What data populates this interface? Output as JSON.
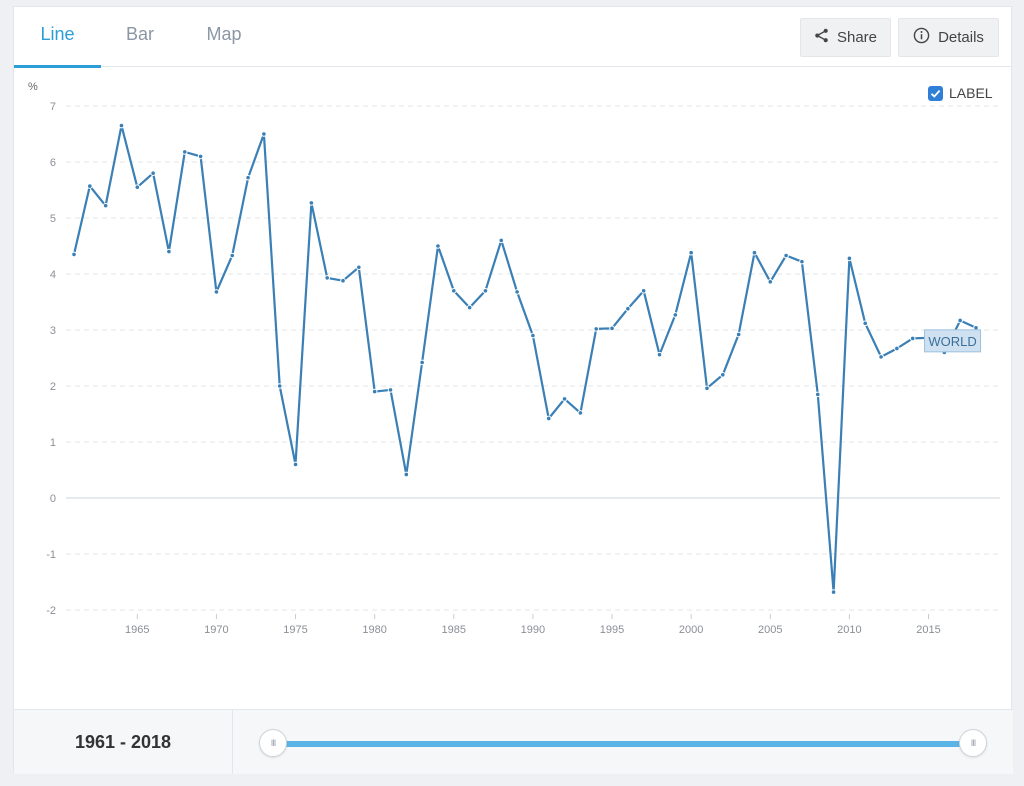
{
  "tabs": [
    {
      "label": "Line",
      "active": true
    },
    {
      "label": "Bar",
      "active": false
    },
    {
      "label": "Map",
      "active": false
    }
  ],
  "buttons": {
    "share": {
      "label": "Share",
      "icon": "share-icon"
    },
    "details": {
      "label": "Details",
      "icon": "info-icon"
    }
  },
  "label_toggle": {
    "label": "LABEL",
    "checked": true
  },
  "footer": {
    "range_start": "1961",
    "range_sep": "-",
    "range_end": "2018",
    "handle_glyph": "III"
  },
  "colors": {
    "line": "#3a7fb5",
    "accent": "#2b9ed8",
    "slider": "#5bb4e6"
  },
  "chart_data": {
    "type": "line",
    "ylabel": "%",
    "ylim": [
      -2,
      7
    ],
    "yticks": [
      -2,
      -1,
      0,
      1,
      2,
      3,
      4,
      5,
      6,
      7
    ],
    "xlim": [
      1961,
      2018
    ],
    "xticks": [
      1965,
      1970,
      1975,
      1980,
      1985,
      1990,
      1995,
      2000,
      2005,
      2010,
      2015
    ],
    "grid": true,
    "series": [
      {
        "name": "WORLD",
        "x": [
          1961,
          1962,
          1963,
          1964,
          1965,
          1966,
          1967,
          1968,
          1969,
          1970,
          1971,
          1972,
          1973,
          1974,
          1975,
          1976,
          1977,
          1978,
          1979,
          1980,
          1981,
          1982,
          1983,
          1984,
          1985,
          1986,
          1987,
          1988,
          1989,
          1990,
          1991,
          1992,
          1993,
          1994,
          1995,
          1996,
          1997,
          1998,
          1999,
          2000,
          2001,
          2002,
          2003,
          2004,
          2005,
          2006,
          2007,
          2008,
          2009,
          2010,
          2011,
          2012,
          2013,
          2014,
          2015,
          2016,
          2017,
          2018
        ],
        "values": [
          4.35,
          5.57,
          5.22,
          6.65,
          5.55,
          5.8,
          4.4,
          6.18,
          6.1,
          3.68,
          4.33,
          5.72,
          6.5,
          2.0,
          0.6,
          5.27,
          3.93,
          3.88,
          4.12,
          1.9,
          1.93,
          0.42,
          2.42,
          4.5,
          3.7,
          3.4,
          3.7,
          4.6,
          3.68,
          2.9,
          1.42,
          1.77,
          1.52,
          3.02,
          3.03,
          3.38,
          3.7,
          2.56,
          3.27,
          4.38,
          1.96,
          2.2,
          2.92,
          4.38,
          3.86,
          4.33,
          4.22,
          1.85,
          -1.68,
          4.28,
          3.12,
          2.52,
          2.67,
          2.85,
          2.86,
          2.6,
          3.17,
          3.04
        ]
      }
    ]
  }
}
